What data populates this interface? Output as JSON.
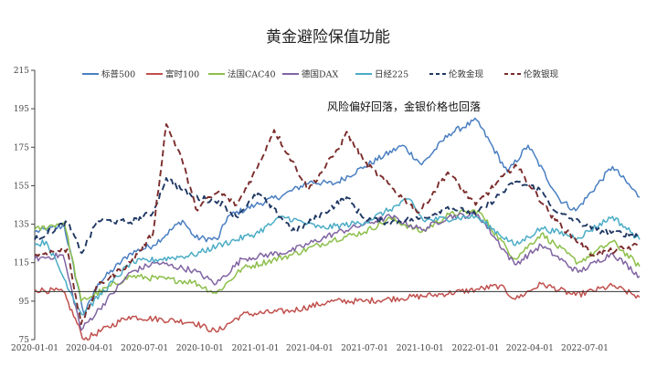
{
  "chart_data": {
    "type": "line",
    "title": "黄金避险保值功能",
    "annotation": "风险偏好回落，金银价格也回落",
    "xlabel": "",
    "ylabel": "",
    "ylim": [
      75,
      215
    ],
    "y_ticks": [
      75,
      95,
      115,
      135,
      155,
      175,
      195,
      215
    ],
    "x_ticks": [
      "2020-01-01",
      "2020-04-01",
      "2020-07-01",
      "2020-10-01",
      "2021-01-01",
      "2021-04-01",
      "2021-07-01",
      "2021-10-01",
      "2022-01-01",
      "2022-04-01",
      "2022-07-01"
    ],
    "x_range": [
      "2020-01-01",
      "2022-09-30"
    ],
    "baseline": 100,
    "grid": false,
    "legend_position": "top",
    "series": [
      {
        "name": "标普500",
        "color": "#4a7fc1",
        "dash": "",
        "points": [
          [
            "2020-01-01",
            131
          ],
          [
            "2020-02-19",
            134
          ],
          [
            "2020-03-23",
            88
          ],
          [
            "2020-04-15",
            104
          ],
          [
            "2020-06-08",
            120
          ],
          [
            "2020-07-15",
            124
          ],
          [
            "2020-09-02",
            137
          ],
          [
            "2020-09-23",
            128
          ],
          [
            "2020-10-30",
            127
          ],
          [
            "2020-11-16",
            139
          ],
          [
            "2021-01-01",
            145
          ],
          [
            "2021-02-15",
            150
          ],
          [
            "2021-04-01",
            157
          ],
          [
            "2021-05-12",
            156
          ],
          [
            "2021-07-01",
            165
          ],
          [
            "2021-09-02",
            176
          ],
          [
            "2021-10-04",
            166
          ],
          [
            "2021-11-18",
            182
          ],
          [
            "2022-01-03",
            189
          ],
          [
            "2022-02-23",
            162
          ],
          [
            "2022-03-29",
            176
          ],
          [
            "2022-05-20",
            148
          ],
          [
            "2022-06-16",
            142
          ],
          [
            "2022-08-16",
            165
          ],
          [
            "2022-09-30",
            149
          ]
        ]
      },
      {
        "name": "富时100",
        "color": "#c0504d",
        "dash": "",
        "points": [
          [
            "2020-01-01",
            101
          ],
          [
            "2020-02-17",
            100
          ],
          [
            "2020-03-23",
            75
          ],
          [
            "2020-06-05",
            87
          ],
          [
            "2020-09-20",
            84
          ],
          [
            "2020-10-28",
            79
          ],
          [
            "2020-12-10",
            88
          ],
          [
            "2021-03-01",
            90
          ],
          [
            "2021-05-10",
            95
          ],
          [
            "2021-07-01",
            95
          ],
          [
            "2021-10-20",
            98
          ],
          [
            "2022-01-01",
            101
          ],
          [
            "2022-02-10",
            103
          ],
          [
            "2022-03-08",
            96
          ],
          [
            "2022-04-20",
            104
          ],
          [
            "2022-06-16",
            98
          ],
          [
            "2022-08-16",
            103
          ],
          [
            "2022-09-30",
            97
          ]
        ]
      },
      {
        "name": "法国CAC40",
        "color": "#8cbf4a",
        "dash": "",
        "points": [
          [
            "2020-01-01",
            132
          ],
          [
            "2020-02-19",
            136
          ],
          [
            "2020-03-18",
            95
          ],
          [
            "2020-06-08",
            108
          ],
          [
            "2020-09-20",
            105
          ],
          [
            "2020-10-28",
            99
          ],
          [
            "2020-12-10",
            112
          ],
          [
            "2021-03-01",
            119
          ],
          [
            "2021-05-10",
            127
          ],
          [
            "2021-07-01",
            131
          ],
          [
            "2021-08-13",
            138
          ],
          [
            "2021-10-04",
            131
          ],
          [
            "2021-11-18",
            140
          ],
          [
            "2022-01-05",
            142
          ],
          [
            "2022-03-07",
            117
          ],
          [
            "2022-04-20",
            130
          ],
          [
            "2022-06-20",
            115
          ],
          [
            "2022-08-16",
            126
          ],
          [
            "2022-09-30",
            113
          ]
        ]
      },
      {
        "name": "德国DAX",
        "color": "#8064a2",
        "dash": "",
        "points": [
          [
            "2020-01-01",
            117
          ],
          [
            "2020-02-17",
            119
          ],
          [
            "2020-03-18",
            80
          ],
          [
            "2020-06-08",
            110
          ],
          [
            "2020-07-20",
            115
          ],
          [
            "2020-09-20",
            111
          ],
          [
            "2020-10-28",
            104
          ],
          [
            "2020-12-10",
            117
          ],
          [
            "2021-03-01",
            121
          ],
          [
            "2021-05-10",
            130
          ],
          [
            "2021-07-01",
            135
          ],
          [
            "2021-08-13",
            139
          ],
          [
            "2021-10-04",
            132
          ],
          [
            "2021-11-18",
            139
          ],
          [
            "2022-01-05",
            140
          ],
          [
            "2022-03-07",
            114
          ],
          [
            "2022-04-20",
            124
          ],
          [
            "2022-06-20",
            110
          ],
          [
            "2022-08-16",
            120
          ],
          [
            "2022-09-30",
            108
          ]
        ]
      },
      {
        "name": "日经225",
        "color": "#4bacc6",
        "dash": "",
        "points": [
          [
            "2020-01-01",
            124
          ],
          [
            "2020-01-20",
            126
          ],
          [
            "2020-03-19",
            88
          ],
          [
            "2020-06-08",
            115
          ],
          [
            "2020-09-20",
            119
          ],
          [
            "2020-11-10",
            125
          ],
          [
            "2021-01-01",
            130
          ],
          [
            "2021-02-16",
            139
          ],
          [
            "2021-04-20",
            133
          ],
          [
            "2021-07-01",
            136
          ],
          [
            "2021-09-14",
            148
          ],
          [
            "2021-10-06",
            137
          ],
          [
            "2022-01-01",
            139
          ],
          [
            "2022-03-08",
            124
          ],
          [
            "2022-04-20",
            133
          ],
          [
            "2022-06-20",
            128
          ],
          [
            "2022-08-16",
            139
          ],
          [
            "2022-09-30",
            127
          ]
        ]
      },
      {
        "name": "伦敦金现",
        "color": "#1f3864",
        "dash": "7,4",
        "points": [
          [
            "2020-01-01",
            127
          ],
          [
            "2020-02-24",
            136
          ],
          [
            "2020-03-19",
            120
          ],
          [
            "2020-04-14",
            137
          ],
          [
            "2020-06-08",
            136
          ],
          [
            "2020-07-15",
            141
          ],
          [
            "2020-08-06",
            159
          ],
          [
            "2020-09-20",
            149
          ],
          [
            "2020-11-01",
            147
          ],
          [
            "2020-11-30",
            139
          ],
          [
            "2021-01-05",
            151
          ],
          [
            "2021-03-08",
            131
          ],
          [
            "2021-06-01",
            149
          ],
          [
            "2021-06-30",
            138
          ],
          [
            "2021-08-09",
            136
          ],
          [
            "2021-10-04",
            138
          ],
          [
            "2021-11-16",
            144
          ],
          [
            "2022-01-01",
            140
          ],
          [
            "2022-03-08",
            157
          ],
          [
            "2022-04-18",
            153
          ],
          [
            "2022-05-16",
            141
          ],
          [
            "2022-07-21",
            132
          ],
          [
            "2022-09-30",
            129
          ]
        ]
      },
      {
        "name": "伦敦银现",
        "color": "#7b2c2c",
        "dash": "7,4",
        "points": [
          [
            "2020-01-01",
            119
          ],
          [
            "2020-02-24",
            122
          ],
          [
            "2020-03-18",
            83
          ],
          [
            "2020-04-15",
            103
          ],
          [
            "2020-06-08",
            115
          ],
          [
            "2020-07-15",
            130
          ],
          [
            "2020-08-06",
            187
          ],
          [
            "2020-08-31",
            170
          ],
          [
            "2020-09-24",
            143
          ],
          [
            "2020-11-01",
            152
          ],
          [
            "2020-12-01",
            145
          ],
          [
            "2021-01-05",
            165
          ],
          [
            "2021-02-01",
            184
          ],
          [
            "2021-03-30",
            153
          ],
          [
            "2021-05-18",
            174
          ],
          [
            "2021-06-01",
            183
          ],
          [
            "2021-07-01",
            167
          ],
          [
            "2021-09-29",
            141
          ],
          [
            "2021-11-16",
            162
          ],
          [
            "2022-01-01",
            145
          ],
          [
            "2022-03-08",
            166
          ],
          [
            "2022-05-13",
            137
          ],
          [
            "2022-07-14",
            119
          ],
          [
            "2022-09-30",
            124
          ]
        ]
      }
    ]
  }
}
